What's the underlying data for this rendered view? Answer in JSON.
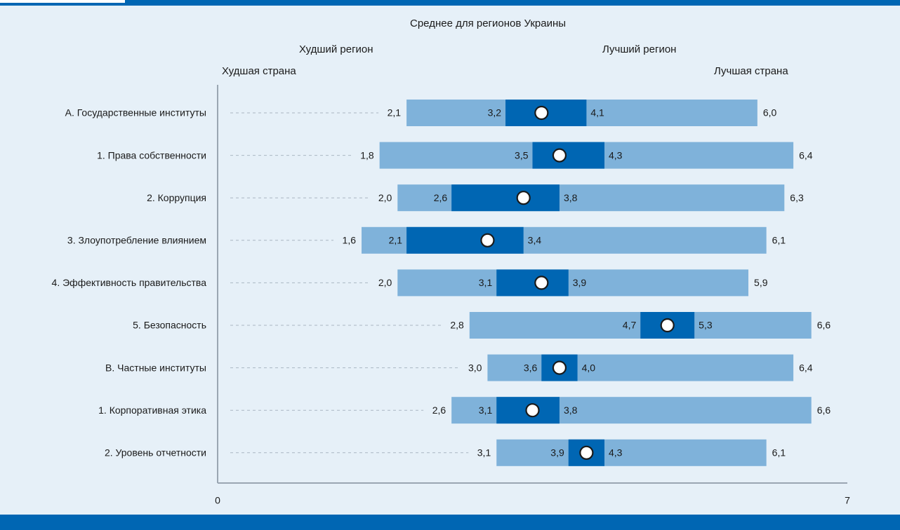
{
  "legend": {
    "average": "Среднее для регионов Украины",
    "worst_region": "Худший регион",
    "best_region": "Лучший регион",
    "worst_country": "Худшая страна",
    "best_country": "Лучшая страна"
  },
  "colors": {
    "background": "#e6f0f8",
    "country_range": "#7fb2da",
    "region_range": "#0066b3",
    "frame": "#0066b3",
    "marker": "#ffffff"
  },
  "chart_data": {
    "type": "bar",
    "orientation": "horizontal",
    "xlim": [
      0,
      7
    ],
    "x_tick_labels": [
      "0",
      "7"
    ],
    "categories": [
      "А. Государственные институты",
      "1. Права собственности",
      "2. Коррупция",
      "3. Злоупотребление влиянием",
      "4. Эффективность правительства",
      "5. Безопасность",
      "В. Частные институты",
      "1. Корпоративная этика",
      "2. Уровень отчетности"
    ],
    "series": [
      {
        "name": "Худшая страна",
        "values": [
          2.1,
          1.8,
          2.0,
          1.6,
          2.0,
          2.8,
          3.0,
          2.6,
          3.1
        ],
        "labels": [
          "2,1",
          "1,8",
          "2,0",
          "1,6",
          "2,0",
          "2,8",
          "3,0",
          "2,6",
          "3,1"
        ]
      },
      {
        "name": "Худший регион",
        "values": [
          3.2,
          3.5,
          2.6,
          2.1,
          3.1,
          4.7,
          3.6,
          3.1,
          3.9
        ],
        "labels": [
          "3,2",
          "3,5",
          "2,6",
          "2,1",
          "3,1",
          "4,7",
          "3,6",
          "3,1",
          "3,9"
        ]
      },
      {
        "name": "Среднее для регионов Украины",
        "values": [
          3.6,
          3.8,
          3.4,
          3.0,
          3.6,
          5.0,
          3.8,
          3.5,
          4.1
        ]
      },
      {
        "name": "Лучший регион",
        "values": [
          4.1,
          4.3,
          3.8,
          3.4,
          3.9,
          5.3,
          4.0,
          3.8,
          4.3
        ],
        "labels": [
          "4,1",
          "4,3",
          "3,8",
          "3,4",
          "3,9",
          "5,3",
          "4,0",
          "3,8",
          "4,3"
        ]
      },
      {
        "name": "Лучшая страна",
        "values": [
          6.0,
          6.4,
          6.3,
          6.1,
          5.9,
          6.6,
          6.4,
          6.6,
          6.1
        ],
        "labels": [
          "6,0",
          "6,4",
          "6,3",
          "6,1",
          "5,9",
          "6,6",
          "6,4",
          "6,6",
          "6,1"
        ]
      }
    ]
  }
}
